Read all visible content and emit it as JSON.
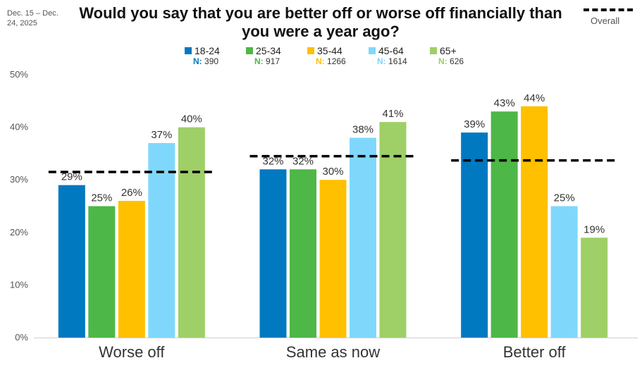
{
  "date_range": "Dec. 15 – Dec. 24, 2025",
  "chart_data": {
    "type": "bar",
    "title": "Would you say that you are better off or worse off financially than you were a year ago?",
    "categories": [
      "Worse off",
      "Same as now",
      "Better off"
    ],
    "series": [
      {
        "name": "18-24",
        "n_label": "N:",
        "n_value": "390",
        "color": "#0079C1",
        "values": [
          29,
          32,
          39
        ],
        "labels": [
          "29%",
          "32%",
          "39%"
        ]
      },
      {
        "name": "25-34",
        "n_label": "N:",
        "n_value": "917",
        "color": "#4DB748",
        "values": [
          25,
          32,
          43
        ],
        "labels": [
          "25%",
          "32%",
          "43%"
        ]
      },
      {
        "name": "35-44",
        "n_label": "N:",
        "n_value": "1266",
        "color": "#FFC000",
        "values": [
          26,
          30,
          44
        ],
        "labels": [
          "26%",
          "30%",
          "44%"
        ]
      },
      {
        "name": "45-64",
        "n_label": "N:",
        "n_value": "1614",
        "color": "#7FD8FC",
        "values": [
          37,
          38,
          25
        ],
        "labels": [
          "37%",
          "38%",
          "25%"
        ]
      },
      {
        "name": "65+",
        "n_label": "N:",
        "n_value": "626",
        "color": "#9FCF67",
        "values": [
          40,
          41,
          19
        ],
        "labels": [
          "40%",
          "41%",
          "19%"
        ]
      }
    ],
    "overall": {
      "label": "Overall",
      "values": [
        31.5,
        34.5,
        33.7
      ]
    },
    "ylim": [
      0,
      50
    ],
    "yticks": [
      0,
      10,
      20,
      30,
      40,
      50
    ],
    "ytick_labels": [
      "0%",
      "10%",
      "20%",
      "30%",
      "40%",
      "50%"
    ],
    "xlabel": "",
    "ylabel": ""
  }
}
